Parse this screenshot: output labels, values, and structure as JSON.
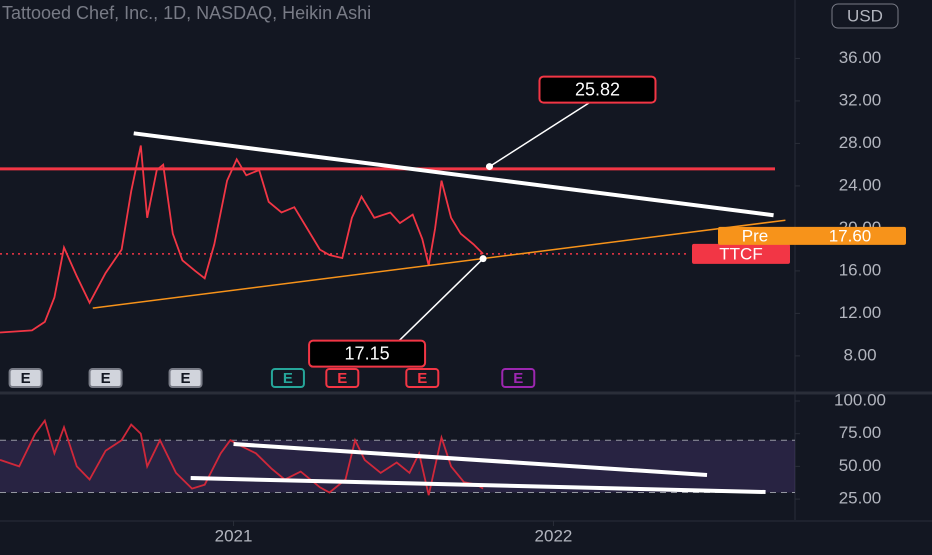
{
  "chart_data": [
    {
      "type": "line",
      "title": "Tattooed Chef, Inc., 1D, NASDAQ, Heikin Ashi",
      "currency": "USD",
      "x": [
        2020.27,
        2020.37,
        2020.41,
        2020.44,
        2020.47,
        2020.51,
        2020.55,
        2020.6,
        2020.65,
        2020.68,
        2020.71,
        2020.73,
        2020.76,
        2020.78,
        2020.81,
        2020.84,
        2020.88,
        2020.91,
        2020.94,
        2020.98,
        2021.01,
        2021.04,
        2021.08,
        2021.11,
        2021.15,
        2021.19,
        2021.23,
        2021.27,
        2021.3,
        2021.34,
        2021.37,
        2021.4,
        2021.44,
        2021.49,
        2021.52,
        2021.56,
        2021.59,
        2021.61,
        2021.63,
        2021.65,
        2021.68,
        2021.71,
        2021.75,
        2021.78
      ],
      "series": [
        {
          "name": "TTCF",
          "color": "#f23645",
          "values": [
            10.2,
            10.4,
            11.2,
            13.5,
            18.2,
            15.5,
            13.0,
            15.8,
            18.0,
            23.5,
            27.8,
            21.0,
            25.5,
            26.0,
            19.5,
            17.0,
            16.0,
            15.3,
            18.5,
            24.5,
            26.5,
            25.0,
            25.5,
            22.5,
            21.5,
            22.0,
            20.0,
            18.0,
            17.5,
            17.2,
            21.0,
            23.0,
            21.0,
            21.5,
            20.5,
            21.3,
            19.0,
            16.5,
            20.0,
            24.5,
            21.0,
            19.5,
            18.5,
            17.6
          ]
        }
      ],
      "pre_market": {
        "label": "Pre",
        "value": 17.6,
        "value_label": "17.60",
        "color": "#f7931a"
      },
      "xlim": [
        2020.27,
        2022.755
      ],
      "ylim": [
        4.6,
        41.5
      ],
      "yticks": [
        {
          "value": 8,
          "label": "8.00"
        },
        {
          "value": 12,
          "label": "12.00"
        },
        {
          "value": 16,
          "label": "16.00"
        },
        {
          "value": 20,
          "label": "20.00"
        },
        {
          "value": 24,
          "label": "24.00"
        },
        {
          "value": 28,
          "label": "28.00"
        },
        {
          "value": 32,
          "label": "32.00"
        },
        {
          "value": 36,
          "label": "36.00"
        }
      ],
      "hline": {
        "value": 25.6,
        "color": "#f23645"
      },
      "trendlines": [
        {
          "x": [
            2020.688,
            2022.688
          ],
          "y": [
            28.95,
            21.24
          ],
          "color": "#ffffff"
        },
        {
          "x": [
            2020.56,
            2022.725
          ],
          "y": [
            12.5,
            20.77
          ],
          "color": "#f7931a"
        }
      ],
      "callouts": [
        {
          "text": "25.82",
          "value": 25.82,
          "x": 2021.8,
          "placement": "upper-right"
        },
        {
          "text": "17.15",
          "value": 17.15,
          "x": 2021.78,
          "placement": "lower-left"
        }
      ],
      "events": [
        {
          "text": "E",
          "x": 2020.35,
          "color": "#787b86"
        },
        {
          "text": "E",
          "x": 2020.6,
          "color": "#787b86"
        },
        {
          "text": "E",
          "x": 2020.85,
          "color": "#787b86"
        },
        {
          "text": "E",
          "x": 2021.17,
          "color": "#26a69a"
        },
        {
          "text": "E",
          "x": 2021.34,
          "color": "#f23645"
        },
        {
          "text": "E",
          "x": 2021.59,
          "color": "#f23645"
        },
        {
          "text": "E",
          "x": 2021.89,
          "color": "#9c27b0"
        }
      ]
    },
    {
      "type": "line",
      "x": [
        2020.27,
        2020.33,
        2020.38,
        2020.41,
        2020.44,
        2020.47,
        2020.51,
        2020.55,
        2020.6,
        2020.65,
        2020.68,
        2020.71,
        2020.73,
        2020.77,
        2020.82,
        2020.87,
        2020.91,
        2020.96,
        2020.99,
        2021.02,
        2021.07,
        2021.12,
        2021.16,
        2021.21,
        2021.27,
        2021.3,
        2021.35,
        2021.38,
        2021.41,
        2021.46,
        2021.51,
        2021.55,
        2021.58,
        2021.61,
        2021.65,
        2021.68,
        2021.72,
        2021.76,
        2021.78
      ],
      "series": [
        {
          "color": "#d0283a",
          "values": [
            55,
            50,
            75,
            85,
            60,
            80,
            50,
            40,
            62,
            70,
            82,
            75,
            50,
            70,
            45,
            33,
            36,
            60,
            70,
            66,
            60,
            48,
            40,
            46,
            34,
            30,
            40,
            70,
            55,
            45,
            53,
            45,
            60,
            28,
            72,
            50,
            38,
            36,
            33
          ]
        }
      ],
      "bands": [
        30,
        70
      ],
      "xlim": [
        2020.27,
        2022.755
      ],
      "ylim": [
        9,
        104.6
      ],
      "yticks": [
        {
          "value": 25,
          "label": "25.00"
        },
        {
          "value": 50,
          "label": "50.00"
        },
        {
          "value": 75,
          "label": "75.00"
        },
        {
          "value": 100,
          "label": "100.00"
        }
      ],
      "xticks": [
        2021,
        2022
      ],
      "trendlines": [
        {
          "x": [
            2021.0,
            2022.48
          ],
          "y": [
            67.1,
            43.4
          ],
          "color": "#ffffff"
        },
        {
          "x": [
            2020.866,
            2022.663
          ],
          "y": [
            41.1,
            30.4
          ],
          "color": "#ffffff"
        }
      ]
    }
  ]
}
